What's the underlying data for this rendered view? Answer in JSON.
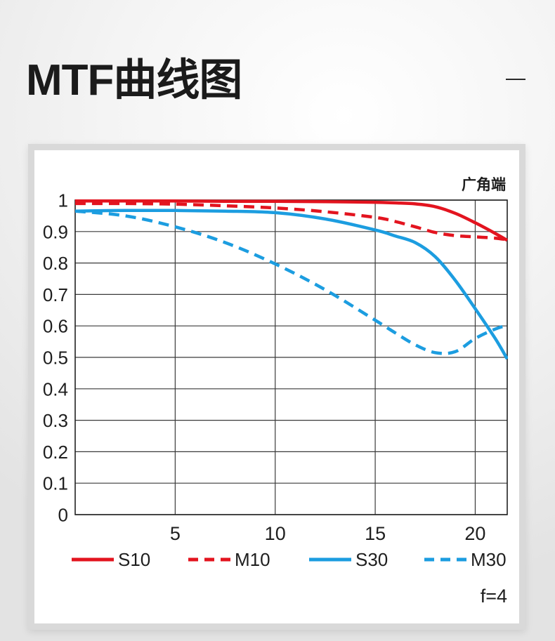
{
  "chart_data": {
    "type": "line",
    "title": "MTF曲线图",
    "corner_label": "广角端",
    "footnote": "f=4",
    "xlim": [
      0,
      21.6
    ],
    "ylim": [
      0,
      1
    ],
    "xticks": [
      5,
      10,
      15,
      20
    ],
    "yticks": [
      1,
      0.9,
      0.8,
      0.7,
      0.6,
      0.5,
      0.4,
      0.3,
      0.2,
      0.1,
      0
    ],
    "grid": true,
    "legend": "bottom",
    "x": [
      0,
      2.5,
      5,
      7.5,
      10,
      12.5,
      15,
      16,
      17,
      18,
      19,
      20,
      21,
      21.6
    ],
    "series": [
      {
        "name": "S10",
        "color": "#e3141f",
        "dashed": false,
        "values": [
          0.997,
          0.997,
          0.997,
          0.996,
          0.996,
          0.995,
          0.993,
          0.991,
          0.988,
          0.979,
          0.958,
          0.928,
          0.894,
          0.872
        ]
      },
      {
        "name": "M10",
        "color": "#e3141f",
        "dashed": true,
        "values": [
          0.989,
          0.989,
          0.987,
          0.982,
          0.975,
          0.963,
          0.945,
          0.932,
          0.915,
          0.897,
          0.887,
          0.883,
          0.879,
          0.874
        ]
      },
      {
        "name": "S30",
        "color": "#1c9de0",
        "dashed": false,
        "values": [
          0.965,
          0.967,
          0.967,
          0.965,
          0.96,
          0.94,
          0.905,
          0.886,
          0.865,
          0.82,
          0.745,
          0.655,
          0.56,
          0.495
        ]
      },
      {
        "name": "M30",
        "color": "#1c9de0",
        "dashed": true,
        "values": [
          0.965,
          0.95,
          0.915,
          0.865,
          0.797,
          0.715,
          0.618,
          0.578,
          0.54,
          0.515,
          0.518,
          0.56,
          0.59,
          0.602
        ]
      }
    ]
  }
}
